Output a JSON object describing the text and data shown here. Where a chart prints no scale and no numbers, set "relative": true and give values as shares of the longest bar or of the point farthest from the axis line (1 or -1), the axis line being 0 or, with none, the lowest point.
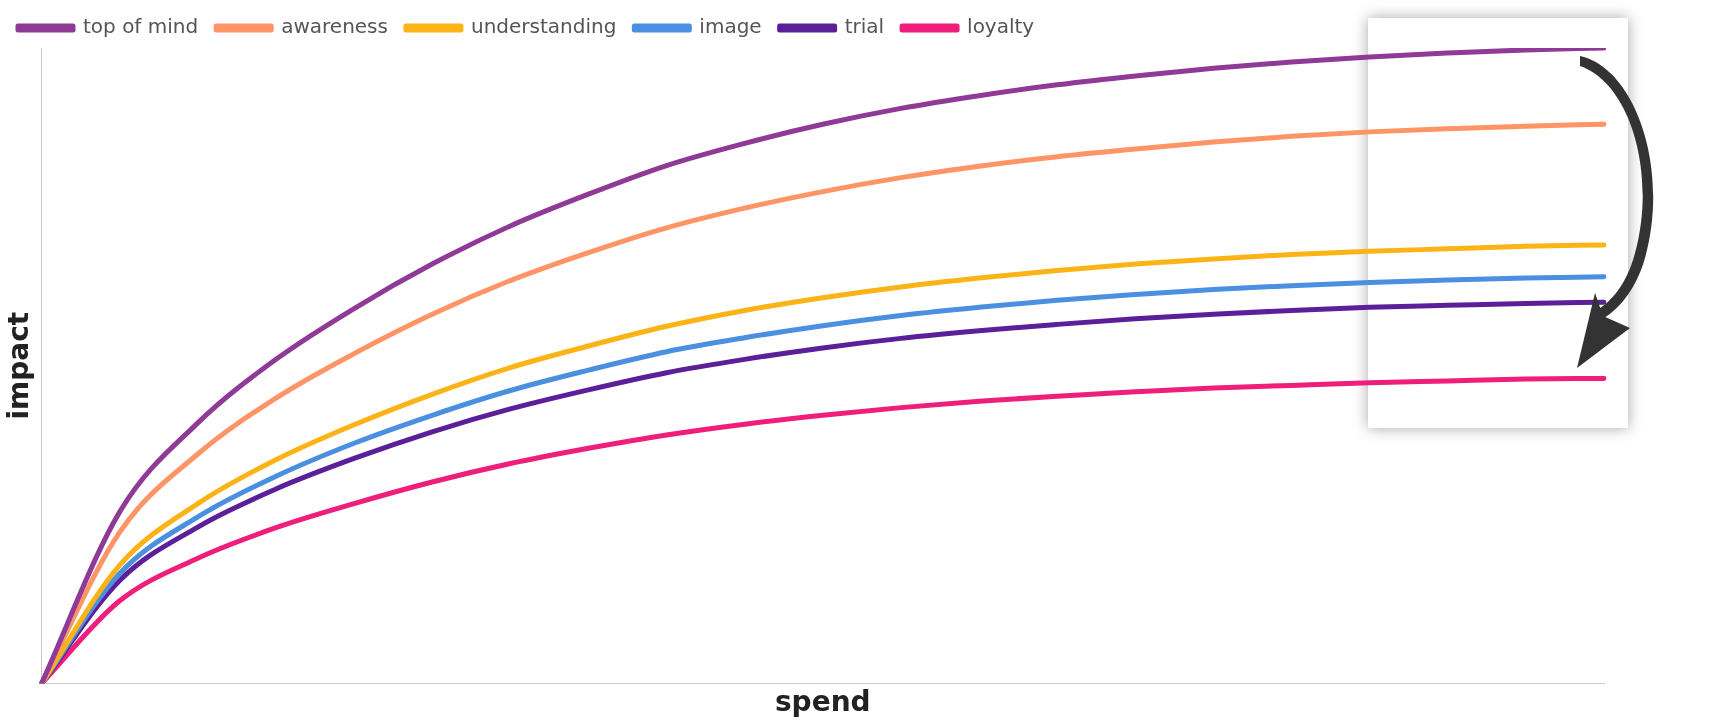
{
  "chart_data": {
    "type": "line",
    "relative": true,
    "xlabel": "spend",
    "ylabel": "impact",
    "legend": "top left",
    "marker": "none",
    "grid": false,
    "categories": [
      null,
      null,
      null,
      null,
      null,
      null,
      null,
      null,
      null,
      null,
      null,
      null,
      null,
      null,
      null,
      null,
      null,
      null,
      null,
      null,
      null
    ],
    "series": [
      {
        "name": "top of mind",
        "color": "#8e3a96",
        "values": [
          0,
          0.27,
          0.41,
          0.51,
          0.59,
          0.66,
          0.72,
          0.77,
          0.815,
          0.85,
          0.88,
          0.905,
          0.925,
          0.942,
          0.956,
          0.968,
          0.978,
          0.986,
          0.992,
          0.997,
          1
        ]
      },
      {
        "name": "awareness",
        "color": "#ff9466",
        "values": [
          0,
          0.238,
          0.361,
          0.449,
          0.519,
          0.581,
          0.634,
          0.678,
          0.717,
          0.748,
          0.774,
          0.796,
          0.814,
          0.829,
          0.841,
          0.852,
          0.861,
          0.868,
          0.873,
          0.877,
          0.88
        ]
      },
      {
        "name": "understanding",
        "color": "#fbb316",
        "values": [
          0,
          0.186,
          0.283,
          0.352,
          0.407,
          0.455,
          0.497,
          0.531,
          0.562,
          0.587,
          0.607,
          0.624,
          0.638,
          0.65,
          0.66,
          0.668,
          0.675,
          0.68,
          0.684,
          0.688,
          0.69
        ]
      },
      {
        "name": "image",
        "color": "#4a8fe0",
        "values": [
          0,
          0.173,
          0.262,
          0.326,
          0.378,
          0.422,
          0.461,
          0.493,
          0.522,
          0.544,
          0.563,
          0.579,
          0.592,
          0.603,
          0.612,
          0.62,
          0.626,
          0.631,
          0.635,
          0.638,
          0.64
        ]
      },
      {
        "name": "trial",
        "color": "#5b1f99",
        "values": [
          0,
          0.162,
          0.246,
          0.306,
          0.354,
          0.396,
          0.432,
          0.462,
          0.489,
          0.51,
          0.528,
          0.543,
          0.555,
          0.565,
          0.574,
          0.581,
          0.587,
          0.592,
          0.595,
          0.598,
          0.6
        ]
      },
      {
        "name": "loyalty",
        "color": "#ee1e7a",
        "values": [
          0,
          0.13,
          0.197,
          0.245,
          0.283,
          0.317,
          0.346,
          0.37,
          0.391,
          0.408,
          0.422,
          0.434,
          0.444,
          0.452,
          0.459,
          0.465,
          0.469,
          0.473,
          0.476,
          0.479,
          0.48
        ]
      }
    ]
  }
}
